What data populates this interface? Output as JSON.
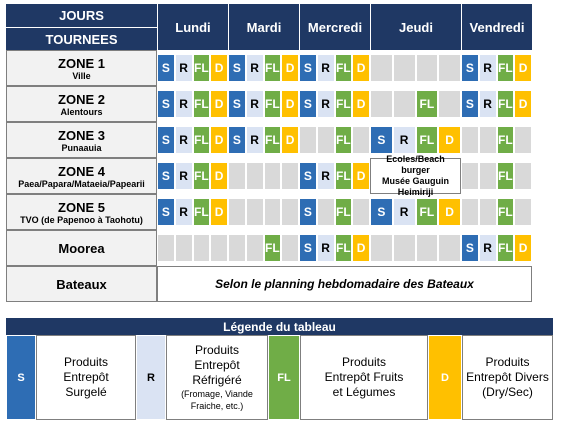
{
  "header": {
    "jours": "JOURS",
    "tournees": "TOURNEES",
    "days": [
      "Lundi",
      "Mardi",
      "Mercredi",
      "Jeudi",
      "Vendredi"
    ]
  },
  "rows": [
    {
      "zone": "ZONE 1",
      "area": "Ville",
      "days": [
        [
          "S",
          "R",
          "FL",
          "D"
        ],
        [
          "S",
          "R",
          "FL",
          "D"
        ],
        [
          "S",
          "R",
          "FL",
          "D"
        ],
        [
          null,
          null,
          null,
          null
        ],
        [
          "S",
          "R",
          "FL",
          "D"
        ]
      ]
    },
    {
      "zone": "ZONE 2",
      "area": "Alentours",
      "days": [
        [
          "S",
          "R",
          "FL",
          "D"
        ],
        [
          "S",
          "R",
          "FL",
          "D"
        ],
        [
          "S",
          "R",
          "FL",
          "D"
        ],
        [
          null,
          null,
          "FL",
          null
        ],
        [
          "S",
          "R",
          "FL",
          "D"
        ]
      ]
    },
    {
      "zone": "ZONE 3",
      "area": "Punaauia",
      "days": [
        [
          "S",
          "R",
          "FL",
          "D"
        ],
        [
          "S",
          "R",
          "FL",
          "D"
        ],
        [
          null,
          null,
          "FL",
          null
        ],
        [
          "S",
          "R",
          "FL",
          "D"
        ],
        [
          null,
          null,
          "FL",
          null
        ]
      ]
    },
    {
      "zone": "ZONE 4",
      "area": "Paea/Papara/Mataeia/Papearii",
      "days": [
        [
          "S",
          "R",
          "FL",
          "D"
        ],
        [
          null,
          null,
          null,
          null
        ],
        [
          "S",
          "R",
          "FL",
          "D"
        ],
        {
          "note": [
            "Ecoles/Beach burger",
            "Musée Gauguin",
            "Heimiriji"
          ]
        },
        [
          null,
          null,
          "FL",
          null
        ]
      ]
    },
    {
      "zone": "ZONE 5",
      "area": "TVO (de Papenoo à Taohotu)",
      "days": [
        [
          "S",
          "R",
          "FL",
          "D"
        ],
        [
          null,
          null,
          null,
          null
        ],
        [
          "S",
          null,
          "FL",
          null
        ],
        [
          "S",
          "R",
          "FL",
          "D"
        ],
        [
          null,
          null,
          "FL",
          null
        ]
      ]
    },
    {
      "zone": "Moorea",
      "days": [
        [
          null,
          null,
          null,
          null
        ],
        [
          null,
          null,
          "FL",
          null
        ],
        [
          "S",
          "R",
          "FL",
          "D"
        ],
        [
          null,
          null,
          null,
          null
        ],
        [
          "S",
          "R",
          "FL",
          "D"
        ]
      ]
    },
    {
      "zone": "Bateaux",
      "note": "Selon le planning hebdomadaire des Bateaux"
    }
  ],
  "legend": {
    "title": "Légende du tableau",
    "items": [
      {
        "code": "S",
        "text": [
          "Produits",
          "Entrepôt",
          "Surgelé"
        ]
      },
      {
        "code": "R",
        "text": [
          "Produits",
          "Entrepôt",
          "Réfrigéré",
          "(Fromage, Viande",
          "Fraiche, etc.)"
        ]
      },
      {
        "code": "FL",
        "text": [
          "Produits",
          "Entrepôt Fruits",
          "et Légumes"
        ]
      },
      {
        "code": "D",
        "text": [
          "Produits",
          "Entrepôt Divers",
          "(Dry/Sec)"
        ]
      }
    ]
  }
}
